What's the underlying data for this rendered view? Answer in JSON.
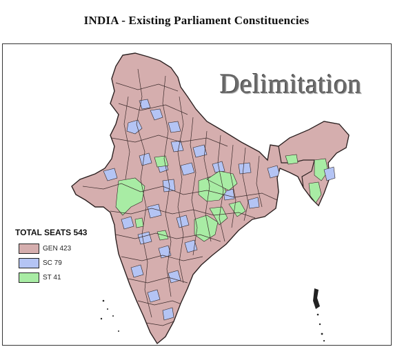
{
  "title": "INDIA - Existing Parliament Constituencies",
  "watermark": "Delimitation",
  "colors": {
    "gen": "#d5aeae",
    "sc": "#b4c4f4",
    "st": "#a8eca4",
    "boundary": "#2b2020"
  },
  "legend": {
    "title": "TOTAL SEATS  543",
    "items": [
      {
        "code": "GEN",
        "label": "GEN  423",
        "color": "#d5aeae"
      },
      {
        "code": "SC",
        "label": "SC    79",
        "color": "#b4c4f4"
      },
      {
        "code": "ST",
        "label": "ST    41",
        "color": "#a8eca4"
      }
    ]
  }
}
